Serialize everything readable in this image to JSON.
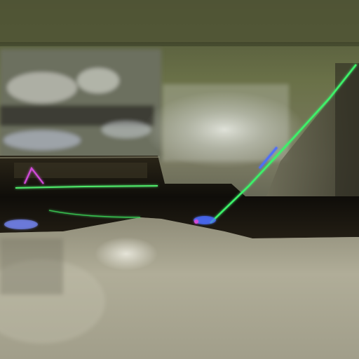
{
  "scene": {
    "kind": "photograph",
    "colors": {
      "upper_wall": "#5f6642",
      "wall_highlight": "#d8dcd2",
      "dark_band": "#16140e",
      "floor": "#a8a48f",
      "floor_light": "#c9c8b6",
      "neon_green": "#3cf26a",
      "neon_blue": "#4a6cff",
      "neon_magenta": "#d04bd8"
    }
  }
}
